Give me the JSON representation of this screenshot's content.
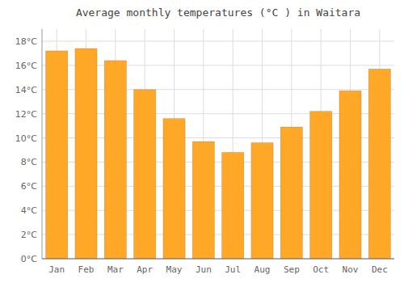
{
  "chart_data": {
    "type": "bar",
    "title": "Average monthly temperatures (°C ) in Waitara",
    "categories": [
      "Jan",
      "Feb",
      "Mar",
      "Apr",
      "May",
      "Jun",
      "Jul",
      "Aug",
      "Sep",
      "Oct",
      "Nov",
      "Dec"
    ],
    "values": [
      17.2,
      17.4,
      16.4,
      14.0,
      11.6,
      9.7,
      8.8,
      9.6,
      10.9,
      12.2,
      13.9,
      15.7
    ],
    "color": "#FFA726",
    "ylim": [
      0,
      19
    ],
    "yticks": [
      {
        "value": 0,
        "label": "0°C"
      },
      {
        "value": 2,
        "label": "2°C"
      },
      {
        "value": 4,
        "label": "4°C"
      },
      {
        "value": 6,
        "label": "6°C"
      },
      {
        "value": 8,
        "label": "8°C"
      },
      {
        "value": 10,
        "label": "10°C"
      },
      {
        "value": 12,
        "label": "12°C"
      },
      {
        "value": 14,
        "label": "14°C"
      },
      {
        "value": 16,
        "label": "16°C"
      },
      {
        "value": 18,
        "label": "18°C"
      }
    ],
    "grid": true
  }
}
